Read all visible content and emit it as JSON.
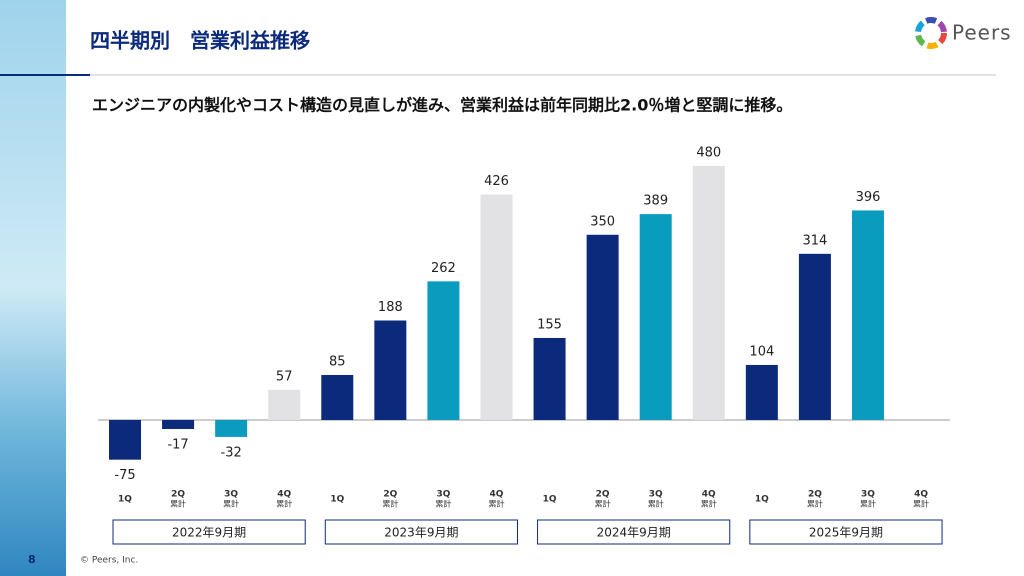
{
  "header": {
    "title": "四半期別　営業利益推移",
    "logo": "Peers"
  },
  "subtitle": "エンジニアの内製化やコスト構造の見直しが進み、営業利益は前年同期比2.0％増と堅調に推移。",
  "chart_data": {
    "type": "bar",
    "categories": [
      [
        "1Q"
      ],
      [
        "2Q",
        "累計"
      ],
      [
        "3Q",
        "累計"
      ],
      [
        "4Q",
        "累計"
      ],
      [
        "1Q"
      ],
      [
        "2Q",
        "累計"
      ],
      [
        "3Q",
        "累計"
      ],
      [
        "4Q",
        "累計"
      ],
      [
        "1Q"
      ],
      [
        "2Q",
        "累計"
      ],
      [
        "3Q",
        "累計"
      ],
      [
        "4Q",
        "累計"
      ],
      [
        "1Q"
      ],
      [
        "2Q",
        "累計"
      ],
      [
        "3Q",
        "累計"
      ],
      [
        "4Q",
        "累計"
      ]
    ],
    "values": [
      -75,
      -17,
      -32,
      57,
      85,
      188,
      262,
      426,
      155,
      350,
      389,
      480,
      104,
      314,
      396,
      null
    ],
    "colors": [
      "#0c2a7c",
      "#0c2a7c",
      "#0a9cbf",
      "#e2e2e4",
      "#0c2a7c",
      "#0c2a7c",
      "#0a9cbf",
      "#e2e2e4",
      "#0c2a7c",
      "#0c2a7c",
      "#0a9cbf",
      "#e2e2e4",
      "#0c2a7c",
      "#0c2a7c",
      "#0a9cbf",
      "#e2e2e4"
    ],
    "groups": [
      "2022年9月期",
      "2023年9月期",
      "2024年9月期",
      "2025年9月期"
    ],
    "ylim": [
      -100,
      500
    ]
  },
  "footer": {
    "page": "8",
    "copyright": "© Peers, Inc."
  }
}
